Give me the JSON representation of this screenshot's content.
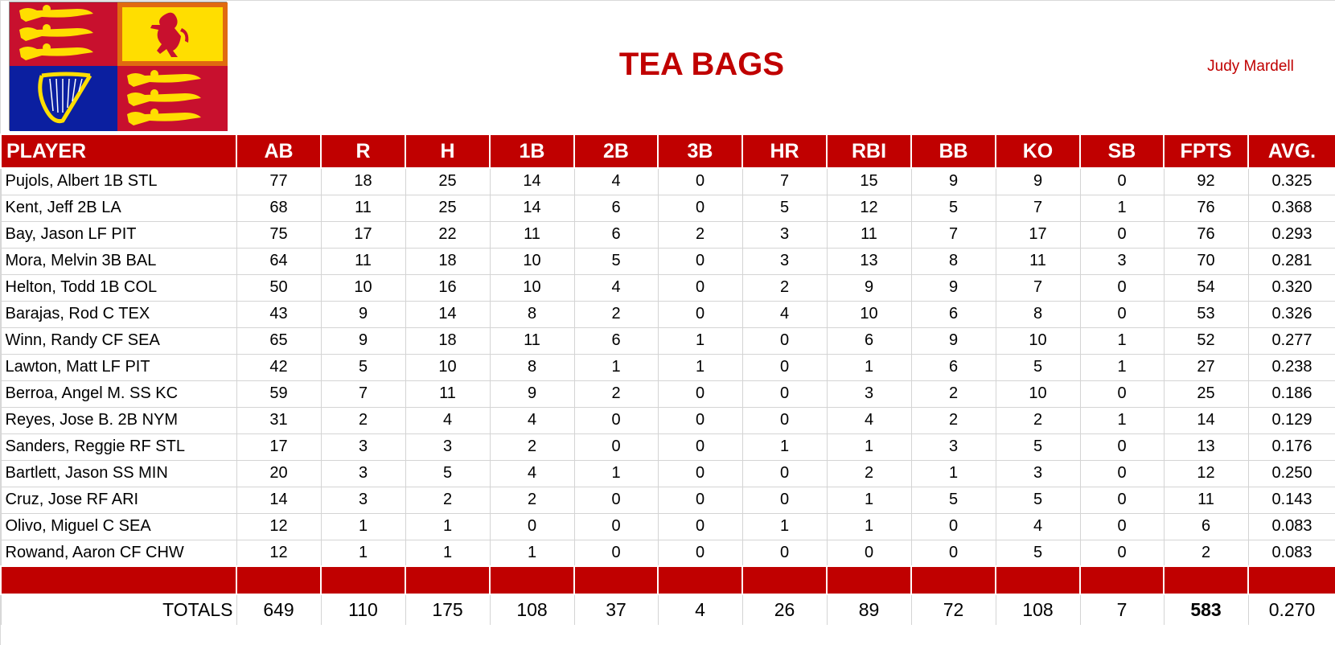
{
  "header": {
    "title": "TEA BAGS",
    "owner": "Judy Mardell",
    "logo": "royal-standard-flag-icon"
  },
  "colors": {
    "accent": "#c00000",
    "header_text": "#ffffff",
    "grid": "#d4d4d4"
  },
  "table": {
    "columns": [
      "PLAYER",
      "AB",
      "R",
      "H",
      "1B",
      "2B",
      "3B",
      "HR",
      "RBI",
      "BB",
      "KO",
      "SB",
      "FPTS",
      "AVG."
    ],
    "rows": [
      [
        "Pujols, Albert 1B STL",
        "77",
        "18",
        "25",
        "14",
        "4",
        "0",
        "7",
        "15",
        "9",
        "9",
        "0",
        "92",
        "0.325"
      ],
      [
        "Kent, Jeff 2B LA",
        "68",
        "11",
        "25",
        "14",
        "6",
        "0",
        "5",
        "12",
        "5",
        "7",
        "1",
        "76",
        "0.368"
      ],
      [
        "Bay, Jason LF PIT",
        "75",
        "17",
        "22",
        "11",
        "6",
        "2",
        "3",
        "11",
        "7",
        "17",
        "0",
        "76",
        "0.293"
      ],
      [
        "Mora, Melvin 3B BAL",
        "64",
        "11",
        "18",
        "10",
        "5",
        "0",
        "3",
        "13",
        "8",
        "11",
        "3",
        "70",
        "0.281"
      ],
      [
        "Helton, Todd 1B COL",
        "50",
        "10",
        "16",
        "10",
        "4",
        "0",
        "2",
        "9",
        "9",
        "7",
        "0",
        "54",
        "0.320"
      ],
      [
        "Barajas, Rod C TEX",
        "43",
        "9",
        "14",
        "8",
        "2",
        "0",
        "4",
        "10",
        "6",
        "8",
        "0",
        "53",
        "0.326"
      ],
      [
        "Winn, Randy CF SEA",
        "65",
        "9",
        "18",
        "11",
        "6",
        "1",
        "0",
        "6",
        "9",
        "10",
        "1",
        "52",
        "0.277"
      ],
      [
        "Lawton, Matt LF PIT",
        "42",
        "5",
        "10",
        "8",
        "1",
        "1",
        "0",
        "1",
        "6",
        "5",
        "1",
        "27",
        "0.238"
      ],
      [
        "Berroa, Angel M. SS KC",
        "59",
        "7",
        "11",
        "9",
        "2",
        "0",
        "0",
        "3",
        "2",
        "10",
        "0",
        "25",
        "0.186"
      ],
      [
        "Reyes, Jose B. 2B NYM",
        "31",
        "2",
        "4",
        "4",
        "0",
        "0",
        "0",
        "4",
        "2",
        "2",
        "1",
        "14",
        "0.129"
      ],
      [
        "Sanders, Reggie RF STL",
        "17",
        "3",
        "3",
        "2",
        "0",
        "0",
        "1",
        "1",
        "3",
        "5",
        "0",
        "13",
        "0.176"
      ],
      [
        "Bartlett, Jason SS MIN",
        "20",
        "3",
        "5",
        "4",
        "1",
        "0",
        "0",
        "2",
        "1",
        "3",
        "0",
        "12",
        "0.250"
      ],
      [
        "Cruz, Jose RF ARI",
        "14",
        "3",
        "2",
        "2",
        "0",
        "0",
        "0",
        "1",
        "5",
        "5",
        "0",
        "11",
        "0.143"
      ],
      [
        "Olivo, Miguel C SEA",
        "12",
        "1",
        "1",
        "0",
        "0",
        "0",
        "1",
        "1",
        "0",
        "4",
        "0",
        "6",
        "0.083"
      ],
      [
        "Rowand, Aaron CF CHW",
        "12",
        "1",
        "1",
        "1",
        "0",
        "0",
        "0",
        "0",
        "0",
        "5",
        "0",
        "2",
        "0.083"
      ]
    ],
    "totals": [
      "TOTALS",
      "649",
      "110",
      "175",
      "108",
      "37",
      "4",
      "26",
      "89",
      "72",
      "108",
      "7",
      "583",
      "0.270"
    ]
  }
}
